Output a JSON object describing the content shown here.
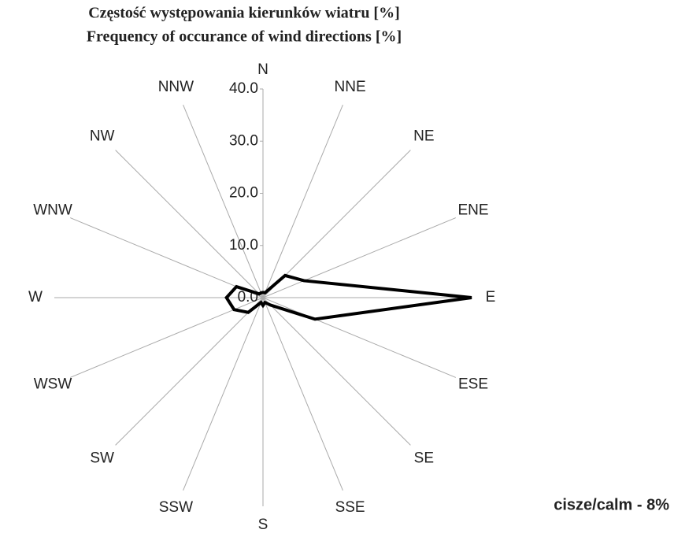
{
  "chart_data": {
    "type": "radar",
    "title": "Częstość występowania kierunków wiatru [%]",
    "subtitle": "Frequency of occurance of wind directions [%]",
    "categories": [
      "N",
      "NNE",
      "NE",
      "ENE",
      "E",
      "ESE",
      "SE",
      "SSE",
      "S",
      "SSW",
      "SW",
      "WSW",
      "W",
      "WNW",
      "NW",
      "NNW"
    ],
    "values": [
      1,
      1,
      6,
      8.5,
      40,
      10.8,
      2,
      1,
      1.5,
      1,
      4,
      6,
      7,
      5.5,
      1,
      1
    ],
    "color": "#000000",
    "rlim": [
      0,
      40
    ],
    "rticks": [
      {
        "value": 0,
        "label": "0.0"
      },
      {
        "value": 10,
        "label": "10.0"
      },
      {
        "value": 20,
        "label": "20.0"
      },
      {
        "value": 30,
        "label": "30.0"
      },
      {
        "value": 40,
        "label": "40.0"
      }
    ],
    "annotation": "cisze/calm - 8%"
  }
}
